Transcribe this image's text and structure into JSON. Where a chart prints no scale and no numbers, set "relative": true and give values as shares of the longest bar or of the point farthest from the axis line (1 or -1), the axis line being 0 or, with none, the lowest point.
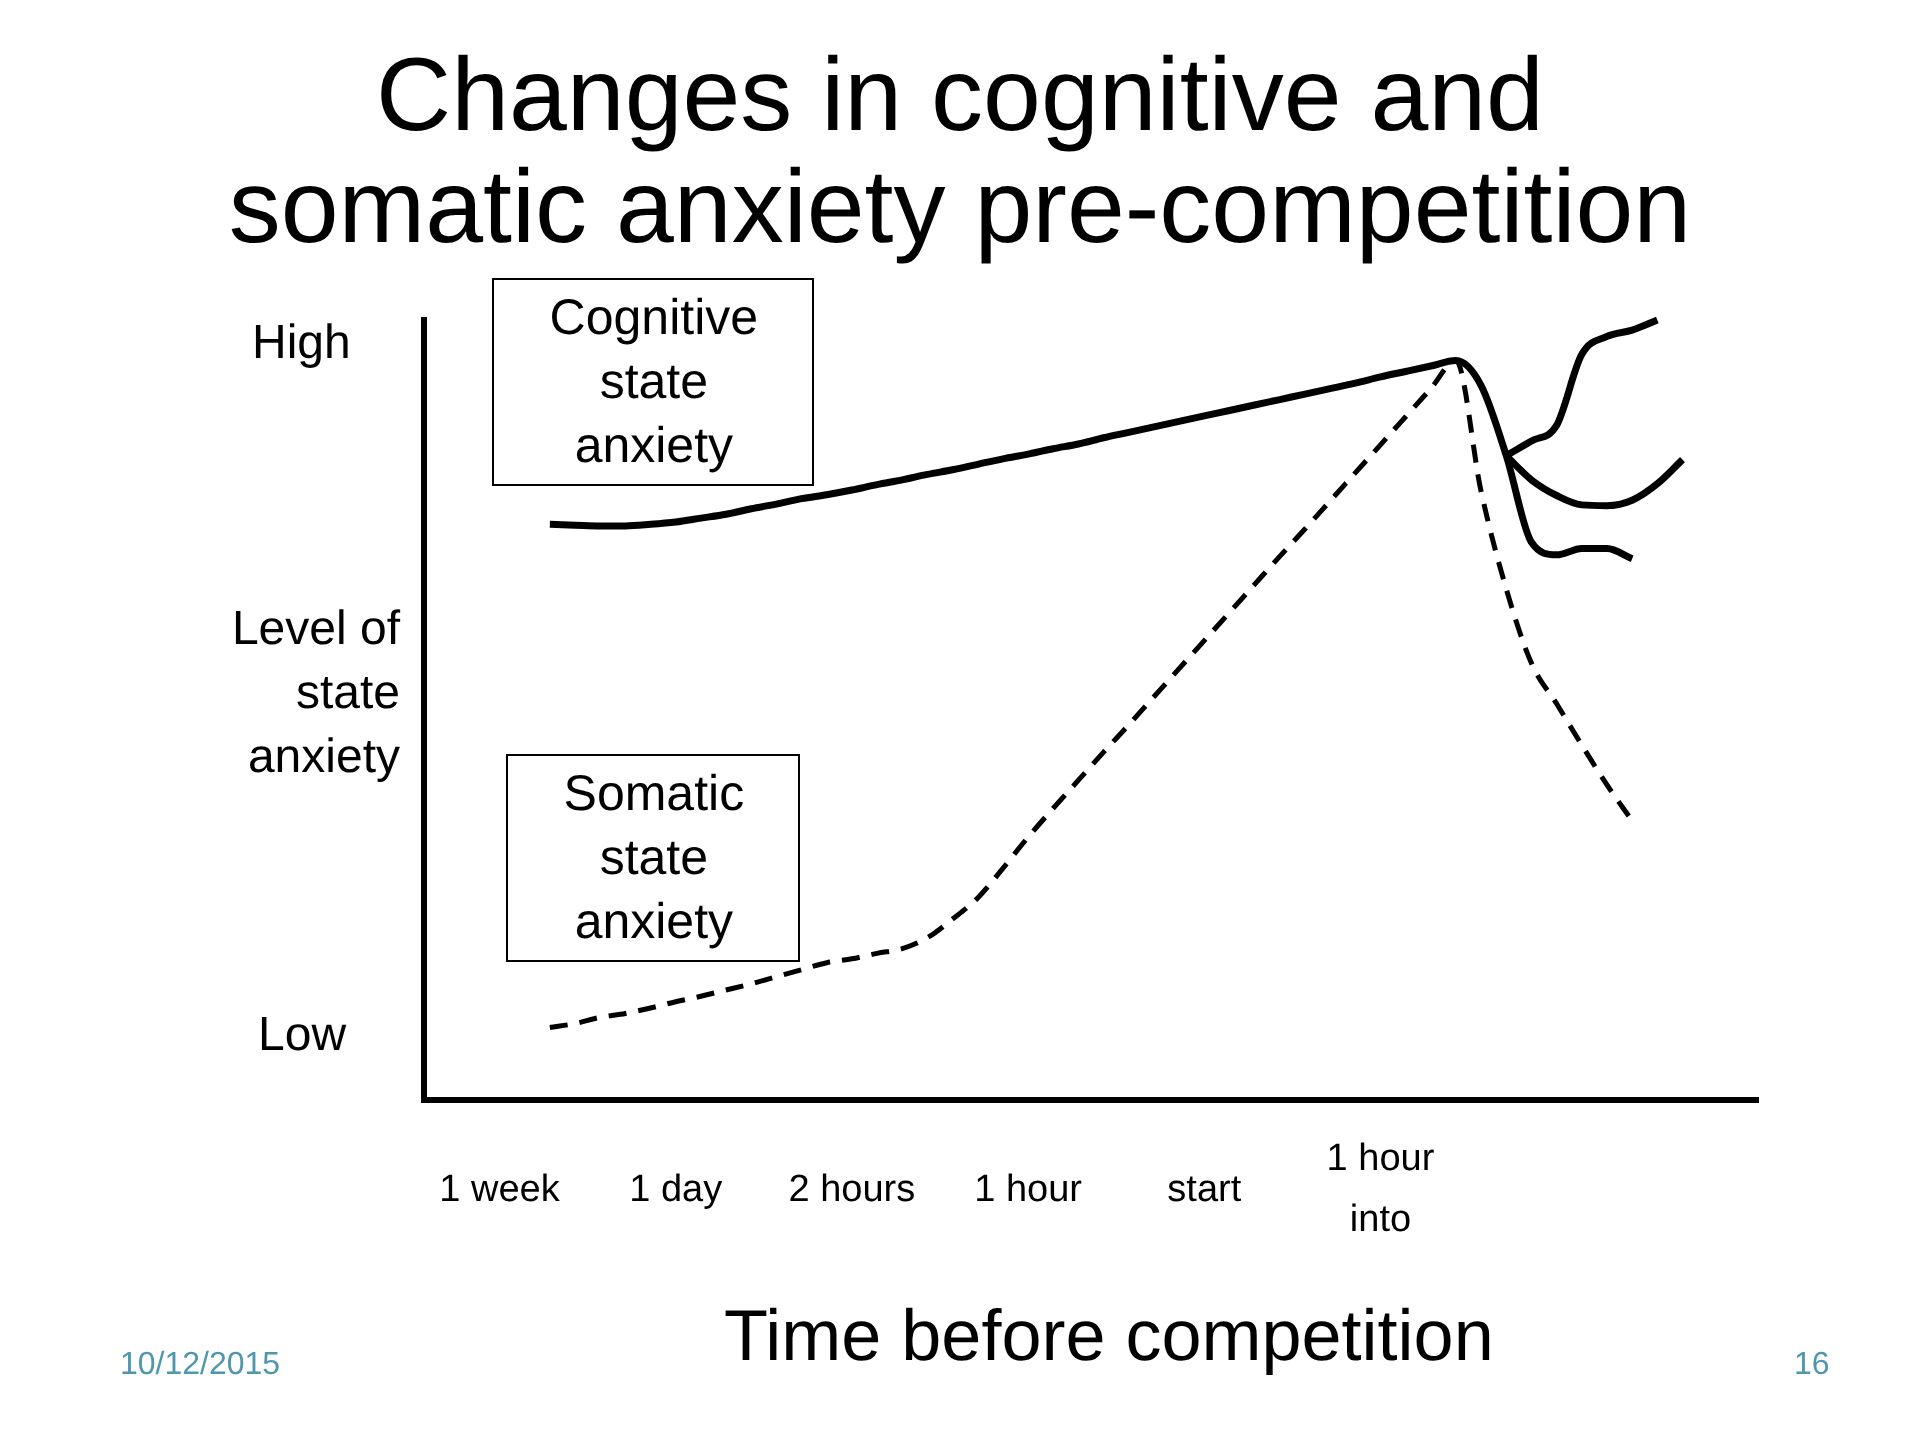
{
  "chart_data": {
    "type": "line",
    "title": "Changes in cognitive and somatic anxiety pre-competition",
    "xlabel": "Time before competition",
    "ylabel": "Level of state anxiety",
    "relative": true,
    "categories": [
      null,
      null,
      null,
      "1 week",
      null,
      null,
      null,
      null,
      null,
      null,
      "1 day",
      null,
      null,
      null,
      null,
      null,
      null,
      "2 hours",
      null,
      null,
      null,
      null,
      null,
      null,
      "1 hour",
      null,
      null,
      null,
      null,
      null,
      null,
      "start",
      null,
      null,
      null,
      null,
      null,
      null,
      "1 hour into",
      null,
      null,
      null,
      null,
      null,
      null,
      null,
      null,
      null,
      null,
      null,
      null,
      null,
      null,
      null
    ],
    "annotations": [
      "High",
      "Low",
      "10/12/2015",
      "16"
    ],
    "series": [
      {
        "name": "Cognitive state anxiety",
        "color": "#000000",
        "line_style": "solid",
        "values": [
          null,
          null,
          null,
          null,
          null,
          0.738,
          0.737,
          0.736,
          0.736,
          0.738,
          0.741,
          0.746,
          0.751,
          0.758,
          0.764,
          0.771,
          0.776,
          0.782,
          0.789,
          0.795,
          0.802,
          0.808,
          0.815,
          0.822,
          0.828,
          0.835,
          0.841,
          0.849,
          0.856,
          0.863,
          0.87,
          0.877,
          0.884,
          0.891,
          0.898,
          0.905,
          0.912,
          0.919,
          0.927,
          0.934,
          0.941,
          0.948,
          0.916,
          0.826,
          0.715,
          0.699,
          0.707,
          0.707,
          0.694,
          null,
          null,
          null,
          null,
          null
        ]
      },
      {
        "color": "#000000",
        "line_style": "solid",
        "values": [
          null,
          null,
          null,
          null,
          null,
          null,
          null,
          null,
          null,
          null,
          null,
          null,
          null,
          null,
          null,
          null,
          null,
          null,
          null,
          null,
          null,
          null,
          null,
          null,
          null,
          null,
          null,
          null,
          null,
          null,
          null,
          null,
          null,
          null,
          null,
          null,
          null,
          null,
          null,
          null,
          null,
          null,
          null,
          0.826,
          0.845,
          0.865,
          0.956,
          0.979,
          0.987,
          1.0,
          null,
          null,
          null,
          null
        ]
      },
      {
        "color": "#000000",
        "line_style": "solid",
        "values": [
          null,
          null,
          null,
          null,
          null,
          null,
          null,
          null,
          null,
          null,
          null,
          null,
          null,
          null,
          null,
          null,
          null,
          null,
          null,
          null,
          null,
          null,
          null,
          null,
          null,
          null,
          null,
          null,
          null,
          null,
          null,
          null,
          null,
          null,
          null,
          null,
          null,
          null,
          null,
          null,
          null,
          null,
          null,
          0.826,
          0.795,
          0.775,
          0.763,
          0.762,
          0.769,
          0.79,
          0.821,
          null,
          null,
          null
        ]
      },
      {
        "name": "Somatic state anxiety",
        "color": "#000000",
        "line_style": "dashed",
        "values": [
          null,
          null,
          null,
          null,
          null,
          0.093,
          0.098,
          0.106,
          0.111,
          0.118,
          0.126,
          0.133,
          0.141,
          0.149,
          0.158,
          0.167,
          0.176,
          0.181,
          0.188,
          0.194,
          0.208,
          0.232,
          0.259,
          0.297,
          0.337,
          0.374,
          0.41,
          0.446,
          0.481,
          0.517,
          0.553,
          0.589,
          0.625,
          0.661,
          0.697,
          0.732,
          0.768,
          0.804,
          0.84,
          0.876,
          0.912,
          0.948,
          0.78,
          0.655,
          0.56,
          0.508,
          0.455,
          0.404,
          0.358,
          null,
          null,
          null,
          null,
          null
        ]
      }
    ]
  }
}
